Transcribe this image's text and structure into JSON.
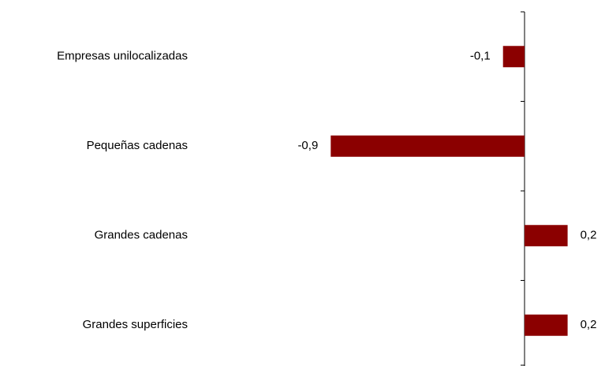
{
  "chart_data": {
    "type": "barh",
    "categories": [
      "Empresas unilocalizadas",
      "Pequeñas cadenas",
      "Grandes cadenas",
      "Grandes superficies"
    ],
    "values": [
      -0.1,
      -0.9,
      0.2,
      0.2
    ],
    "value_labels": [
      "-0,1",
      "-0,9",
      "0,2",
      "0,2"
    ],
    "color": "#8b0000"
  }
}
